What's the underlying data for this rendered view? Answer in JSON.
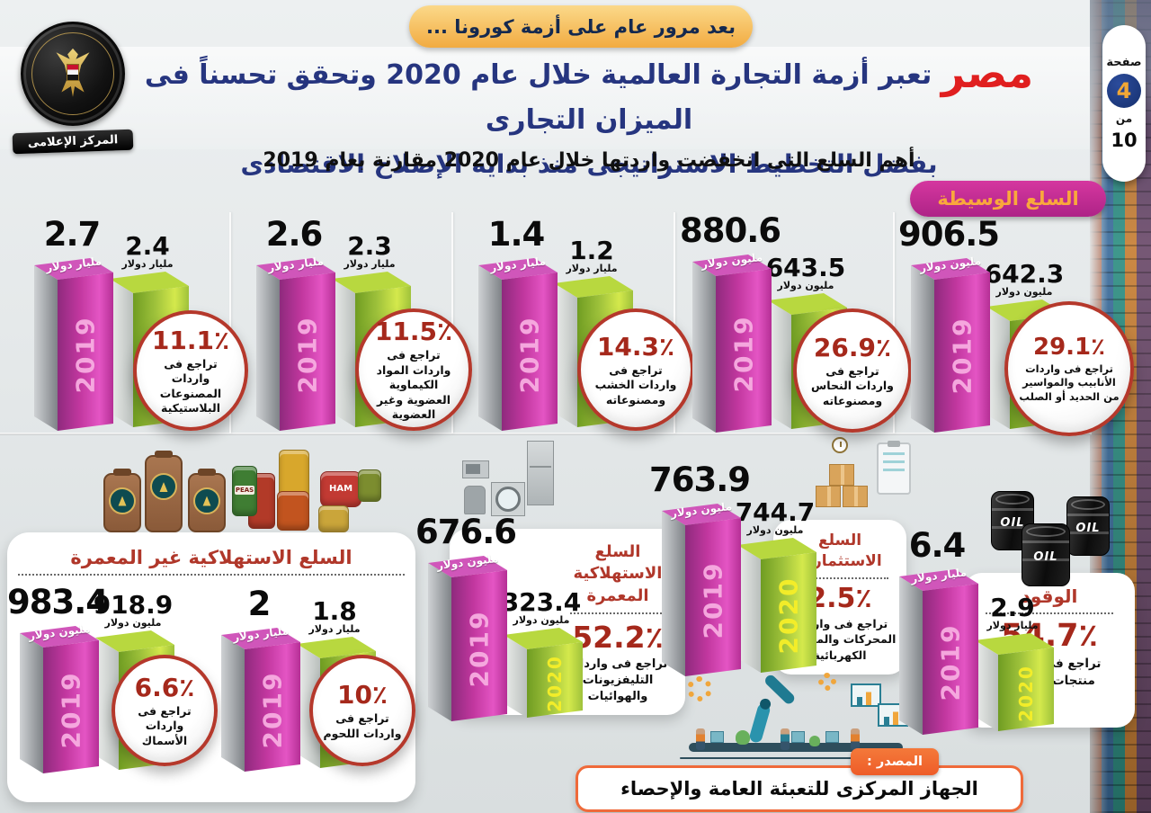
{
  "page": {
    "banner": "بعد مرور عام على أزمة كورونا ...",
    "title_highlight": "مصر",
    "title_rest": "تعبر أزمة التجارة العالمية خلال عام 2020 وتحقق تحسناً فى الميزان التجارى",
    "title_line2": "بفضل التخطيط الاستراتيجى منذ بداية الإصلاح الاقتصادى",
    "subtitle": "أهم السلع التى انخفضت واردتها خلال عام 2020 مقارنة بعام 2019",
    "page_word": "صفحة",
    "page_number": "4",
    "of_word": "من",
    "page_total": "10",
    "logo_ribbon": "المركز الإعلامى",
    "source_label": "المصدر :",
    "source_text": "الجهاز المركزى للتعبئة العامة والإحصاء"
  },
  "sections": [
    {
      "label": "السلع الوسيطة"
    },
    {
      "label": "السلع الاستهلاكية غير المعمرة"
    },
    {
      "label": "السلع الاستهلاكية المعمرة"
    },
    {
      "label": "السلع الاستثمارية"
    },
    {
      "label": "الوقود"
    }
  ],
  "icons": {
    "oil_label": "OIL",
    "can_label_ham": "HAM",
    "can_label_peas": "PEAS"
  },
  "colors": {
    "bar_2019_magenta": "#c2379f",
    "bar_2020_green": "#9fc23b",
    "decline_red": "#a5281b",
    "title_blue": "#26357f",
    "highlight_red": "#e01f1f",
    "pill_magenta": "#c13aa4",
    "pill_text_orange": "#f9a83c",
    "source_orange": "#ef5f2a"
  },
  "chart_data": [
    {
      "type": "bar",
      "section": "السلع الوسيطة",
      "item": "المصنوعات البلاستيكية",
      "categories": [
        "2019",
        "2020"
      ],
      "values": [
        2.7,
        2.4
      ],
      "values_display": [
        "2.7",
        "2.4"
      ],
      "unit": "مليار دولار",
      "decline_pct": 11.1,
      "pct_display": "11.1٪",
      "note": "تراجع فى واردات المصنوعات البلاستيكية"
    },
    {
      "type": "bar",
      "section": "السلع الوسيطة",
      "item": "المواد الكيماوية العضوية وغير العضوية",
      "categories": [
        "2019",
        "2020"
      ],
      "values": [
        2.6,
        2.3
      ],
      "values_display": [
        "2.6",
        "2.3"
      ],
      "unit": "مليار دولار",
      "decline_pct": 11.5,
      "pct_display": "11.5٪",
      "note": "تراجع فى واردات المواد الكيماوية العضوية وغير العضوية"
    },
    {
      "type": "bar",
      "section": "السلع الوسيطة",
      "item": "الخشب ومصنوعاته",
      "categories": [
        "2019",
        "2020"
      ],
      "values": [
        1.4,
        1.2
      ],
      "values_display": [
        "1.4",
        "1.2"
      ],
      "unit": "مليار دولار",
      "decline_pct": 14.3,
      "pct_display": "14.3٪",
      "note": "تراجع فى واردات الخشب ومصنوعاته"
    },
    {
      "type": "bar",
      "section": "السلع الوسيطة",
      "item": "النحاس ومصنوعاته",
      "categories": [
        "2019",
        "2020"
      ],
      "values": [
        880.6,
        643.5
      ],
      "values_display": [
        "880.6",
        "643.5"
      ],
      "unit": "مليون دولار",
      "decline_pct": 26.9,
      "pct_display": "26.9٪",
      "note": "تراجع فى واردات النحاس ومصنوعاته"
    },
    {
      "type": "bar",
      "section": "السلع الوسيطة",
      "item": "الأنابيب والمواسير من الحديد أو الصلب",
      "categories": [
        "2019",
        "2020"
      ],
      "values": [
        906.5,
        642.3
      ],
      "values_display": [
        "906.5",
        "642.3"
      ],
      "unit": "مليون دولار",
      "decline_pct": 29.1,
      "pct_display": "29.1٪",
      "note": "تراجع فى واردات الأنابيب والمواسير من الحديد أو الصلب"
    },
    {
      "type": "bar",
      "section": "السلع الاستهلاكية غير المعمرة",
      "item": "الأسماك",
      "categories": [
        "2019",
        "2020"
      ],
      "values": [
        983.4,
        918.9
      ],
      "values_display": [
        "983.4",
        "918.9"
      ],
      "unit": "مليون دولار",
      "decline_pct": 6.6,
      "pct_display": "6.6٪",
      "note": "تراجع فى واردات الأسماك"
    },
    {
      "type": "bar",
      "section": "السلع الاستهلاكية غير المعمرة",
      "item": "اللحوم",
      "categories": [
        "2019",
        "2020"
      ],
      "values": [
        2,
        1.8
      ],
      "values_display": [
        "2",
        "1.8"
      ],
      "unit": "مليار دولار",
      "decline_pct": 10,
      "pct_display": "10٪",
      "note": "تراجع فى واردات اللحوم"
    },
    {
      "type": "bar",
      "section": "السلع الاستهلاكية المعمرة",
      "item": "التليفزيونات والهوائيات",
      "categories": [
        "2019",
        "2020"
      ],
      "values": [
        676.6,
        323.4
      ],
      "values_display": [
        "676.6",
        "323.4"
      ],
      "unit": "مليون دولار",
      "decline_pct": 52.2,
      "pct_display": "52.2٪",
      "note": "تراجع فى واردات التليفزيونات والهوائيات"
    },
    {
      "type": "bar",
      "section": "السلع الاستثمارية",
      "item": "المحركات والمولدات الكهربائية",
      "categories": [
        "2019",
        "2020"
      ],
      "values": [
        763.9,
        744.7
      ],
      "values_display": [
        "763.9",
        "744.7"
      ],
      "unit": "مليون دولار",
      "decline_pct": 2.5,
      "pct_display": "2.5٪",
      "note": "تراجع فى واردات المحركات والمولدات الكهربائية"
    },
    {
      "type": "bar",
      "section": "الوقود",
      "item": "منتجات البترول",
      "categories": [
        "2019",
        "2020"
      ],
      "values": [
        6.4,
        2.9
      ],
      "values_display": [
        "6.4",
        "2.9"
      ],
      "unit": "مليار دولار",
      "decline_pct": 54.7,
      "pct_display": "54.7٪",
      "note": "تراجع فى واردات منتجات البترول"
    }
  ]
}
